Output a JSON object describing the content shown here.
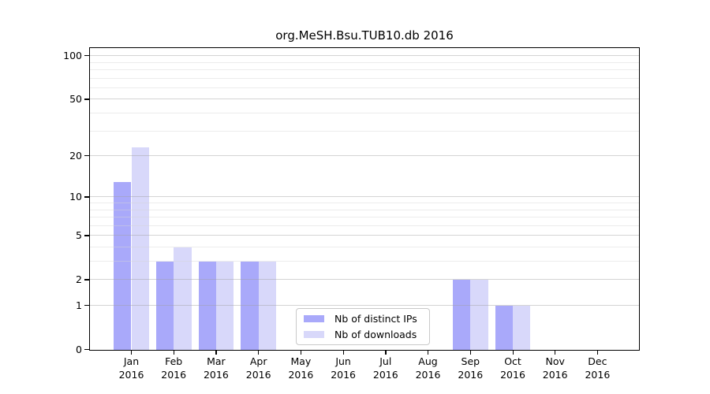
{
  "title": "org.MeSH.Bsu.TUB10.db 2016",
  "chart_data": {
    "type": "bar",
    "title": "org.MeSH.Bsu.TUB10.db 2016",
    "categories": [
      "Jan",
      "Feb",
      "Mar",
      "Apr",
      "May",
      "Jun",
      "Jul",
      "Aug",
      "Sep",
      "Oct",
      "Nov",
      "Dec"
    ],
    "year_label": "2016",
    "series": [
      {
        "name": "Nb of distinct IPs",
        "color": "#a9a9fa",
        "values": [
          13,
          3,
          3,
          3,
          0,
          0,
          0,
          0,
          2,
          1,
          0,
          0
        ]
      },
      {
        "name": "Nb of downloads",
        "color": "#d8d8fa",
        "values": [
          23,
          4,
          3,
          3,
          0,
          0,
          0,
          0,
          2,
          1,
          0,
          0
        ]
      }
    ],
    "xlabel": "",
    "ylabel": "",
    "y_axis": {
      "scale": "log1p",
      "ticks": [
        0,
        1,
        2,
        5,
        10,
        20,
        50,
        100
      ],
      "minor_gridlines": [
        3,
        4,
        6,
        7,
        8,
        9,
        30,
        40,
        60,
        70,
        80,
        90
      ],
      "ylim": [
        0,
        105
      ]
    },
    "grid": true,
    "legend": {
      "position": "bottom-center"
    }
  }
}
